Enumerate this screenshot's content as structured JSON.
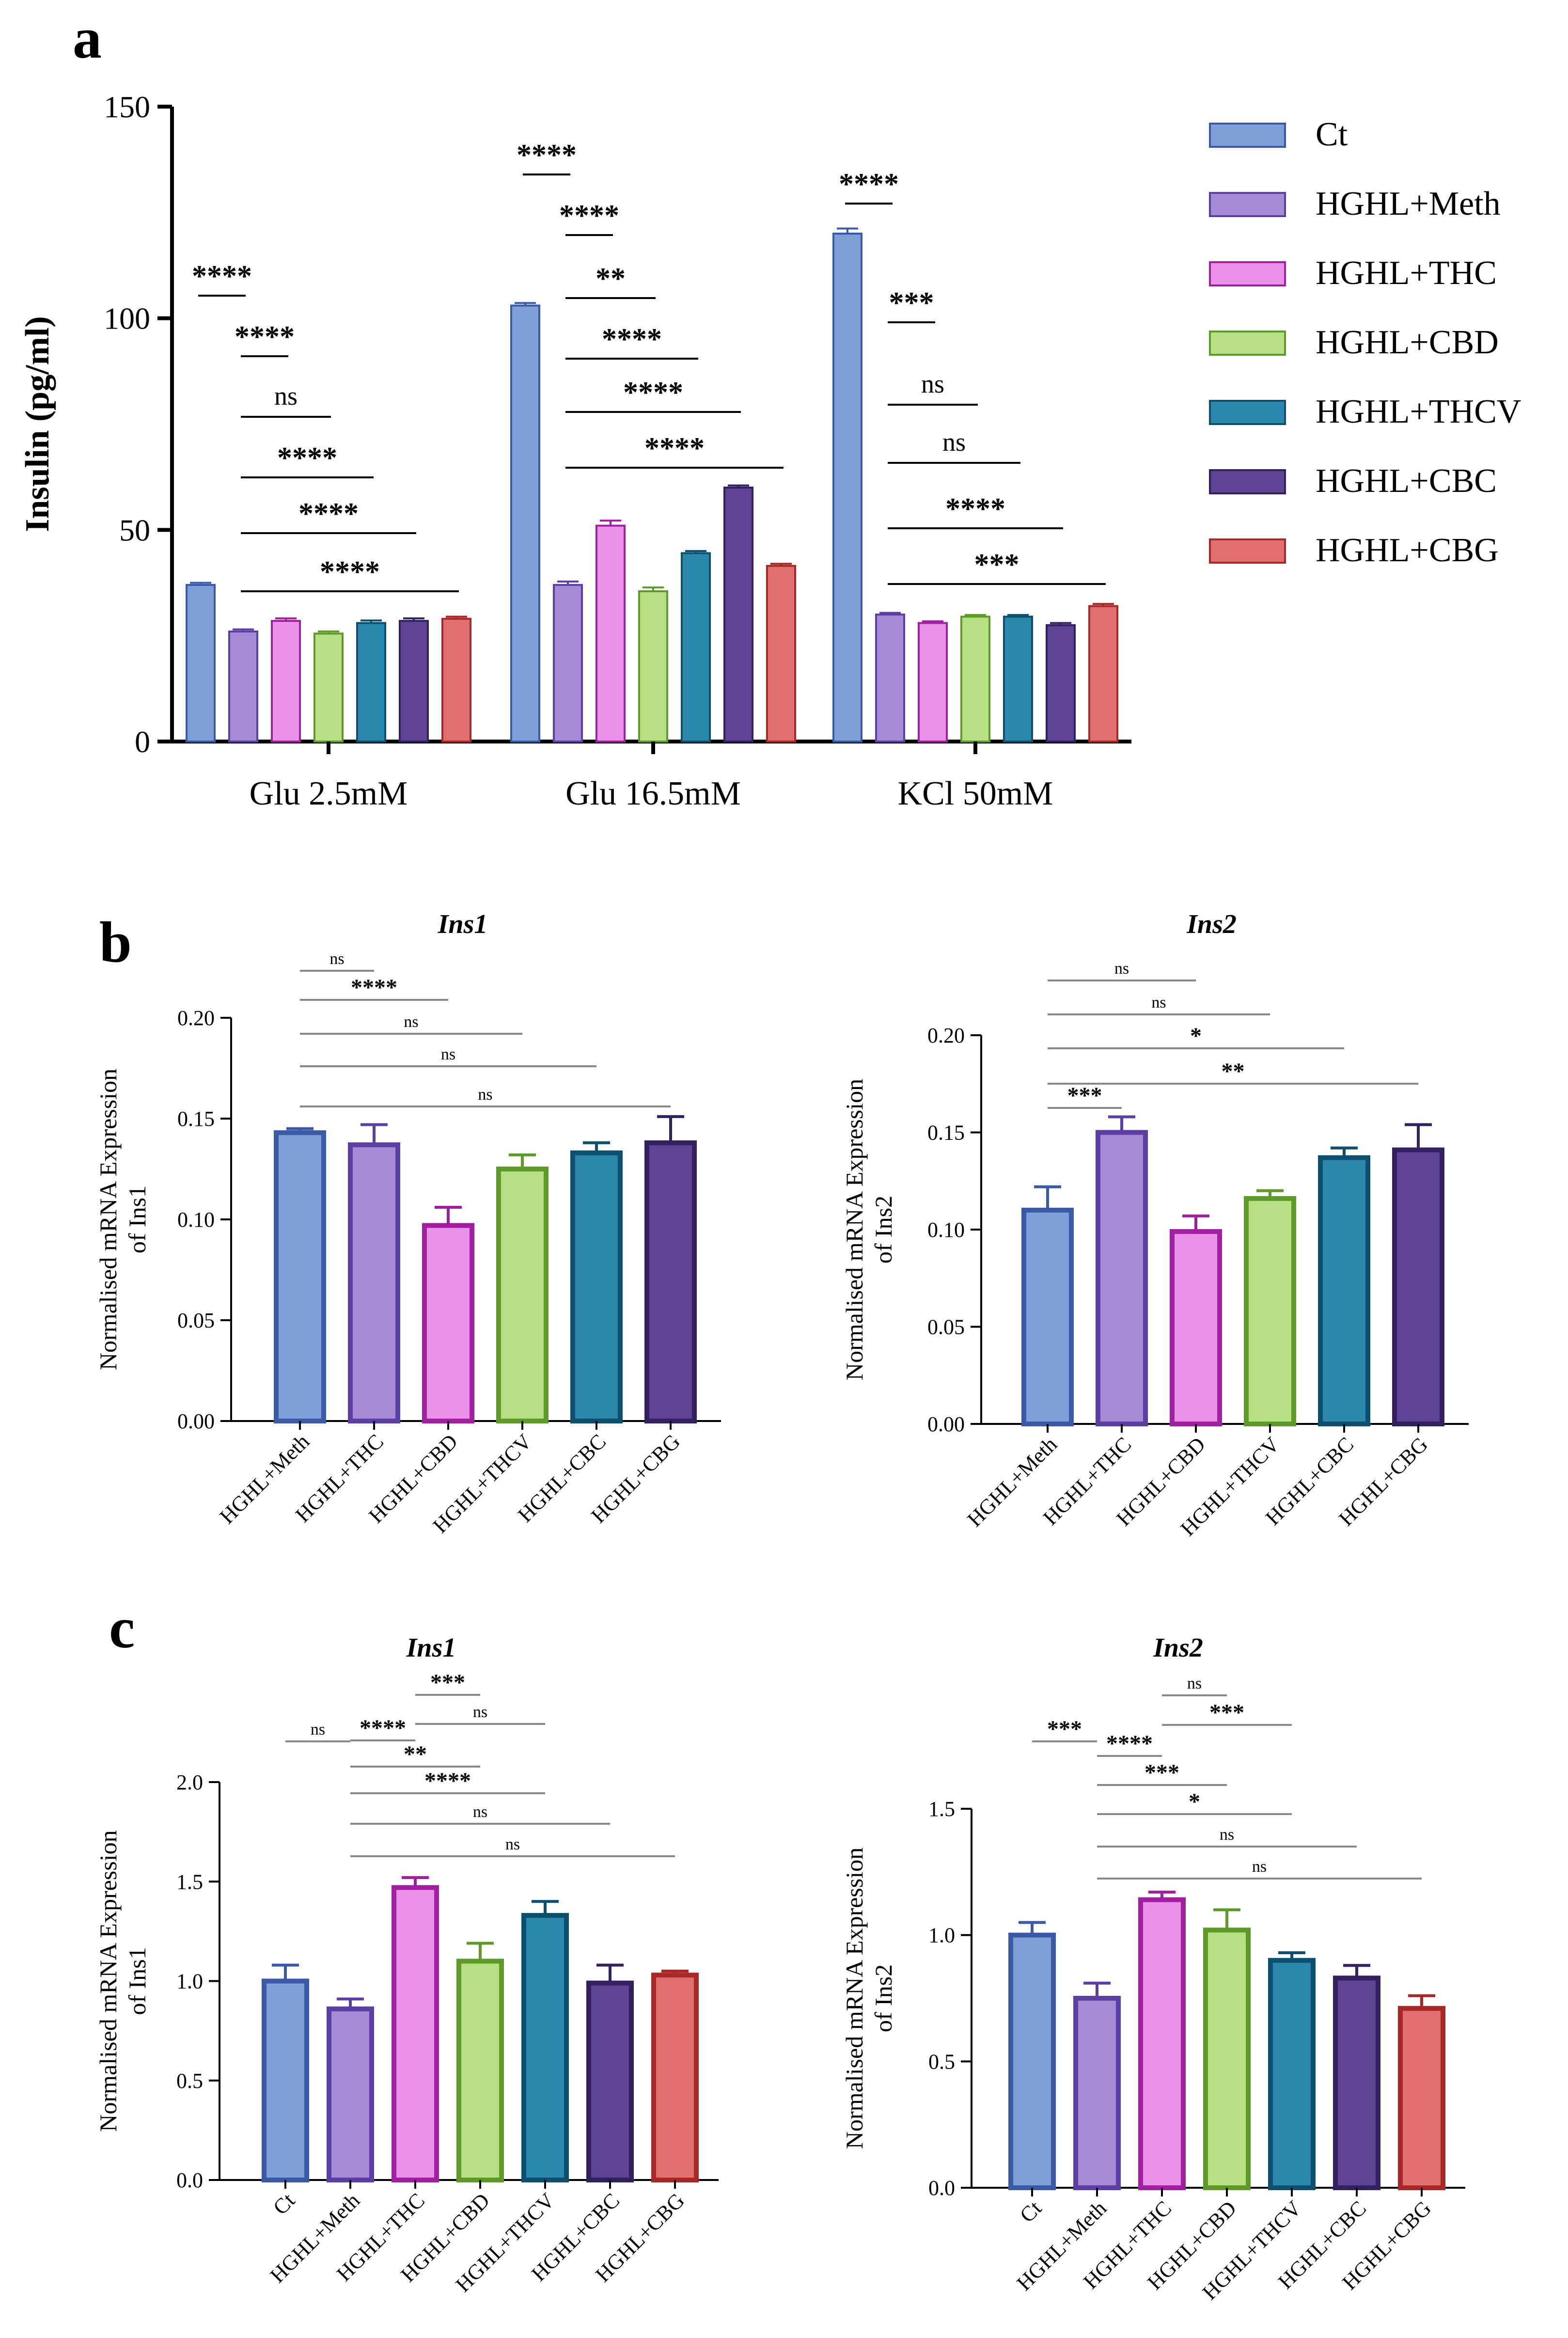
{
  "panel_labels": {
    "a": "a",
    "b": "b",
    "c": "c"
  },
  "colors": {
    "Ct": {
      "fill": "#7f9fd9",
      "stroke": "#3a5aa6"
    },
    "HGHL+Meth": {
      "fill": "#a38bd6",
      "stroke": "#5c3fa3"
    },
    "HGHL+THC": {
      "fill": "#ea92ea",
      "stroke": "#a020a0"
    },
    "HGHL+CBD": {
      "fill": "#b9df85",
      "stroke": "#5d9a2a"
    },
    "HGHL+THCV": {
      "fill": "#2b88ac",
      "stroke": "#0d4f6e"
    },
    "HGHL+CBC": {
      "fill": "#5d4494",
      "stroke": "#33205e"
    },
    "HGHL+CBG": {
      "fill": "#e07070",
      "stroke": "#a82828"
    }
  },
  "chart_data": [
    {
      "id": "a",
      "type": "bar",
      "title": "",
      "xlabel": "",
      "ylabel": "Insulin (pg/ml)",
      "ylim": [
        0,
        150
      ],
      "yticks": [
        0,
        50,
        100,
        150
      ],
      "categories": [
        "Glu 2.5mM",
        "Glu 16.5mM",
        "KCl 50mM"
      ],
      "legend": [
        "Ct",
        "HGHL+Meth",
        "HGHL+THC",
        "HGHL+CBD",
        "HGHL+THCV",
        "HGHL+CBC",
        "HGHL+CBG"
      ],
      "legend_position": "right",
      "series": [
        {
          "name": "Ct",
          "values": [
            37,
            103,
            120
          ],
          "errors": [
            0.5,
            0.6,
            1.2
          ]
        },
        {
          "name": "HGHL+Meth",
          "values": [
            26,
            37,
            30
          ],
          "errors": [
            0.5,
            0.8,
            0.4
          ]
        },
        {
          "name": "HGHL+THC",
          "values": [
            28.5,
            51,
            28
          ],
          "errors": [
            0.6,
            1.2,
            0.4
          ]
        },
        {
          "name": "HGHL+CBD",
          "values": [
            25.5,
            35.5,
            29.5
          ],
          "errors": [
            0.5,
            0.9,
            0.4
          ]
        },
        {
          "name": "HGHL+THCV",
          "values": [
            28,
            44.5,
            29.5
          ],
          "errors": [
            0.6,
            0.5,
            0.4
          ]
        },
        {
          "name": "HGHL+CBC",
          "values": [
            28.5,
            60,
            27.5
          ],
          "errors": [
            0.6,
            0.5,
            0.5
          ]
        },
        {
          "name": "HGHL+CBG",
          "values": [
            29,
            41.5,
            32
          ],
          "errors": [
            0.5,
            0.5,
            0.5
          ]
        }
      ],
      "significance": [
        {
          "group": 0,
          "from": 0,
          "to": 1,
          "label": "****"
        },
        {
          "group": 0,
          "from": 1,
          "to": 2,
          "label": "****"
        },
        {
          "group": 0,
          "from": 1,
          "to": 3,
          "label": "ns"
        },
        {
          "group": 0,
          "from": 1,
          "to": 4,
          "label": "****"
        },
        {
          "group": 0,
          "from": 1,
          "to": 5,
          "label": "****"
        },
        {
          "group": 0,
          "from": 1,
          "to": 6,
          "label": "****"
        },
        {
          "group": 1,
          "from": 0,
          "to": 1,
          "label": "****"
        },
        {
          "group": 1,
          "from": 1,
          "to": 2,
          "label": "****"
        },
        {
          "group": 1,
          "from": 1,
          "to": 3,
          "label": "**"
        },
        {
          "group": 1,
          "from": 1,
          "to": 4,
          "label": "****"
        },
        {
          "group": 1,
          "from": 1,
          "to": 5,
          "label": "****"
        },
        {
          "group": 1,
          "from": 1,
          "to": 6,
          "label": "****"
        },
        {
          "group": 2,
          "from": 0,
          "to": 1,
          "label": "****"
        },
        {
          "group": 2,
          "from": 1,
          "to": 2,
          "label": "***"
        },
        {
          "group": 2,
          "from": 1,
          "to": 3,
          "label": "ns"
        },
        {
          "group": 2,
          "from": 1,
          "to": 4,
          "label": "ns"
        },
        {
          "group": 2,
          "from": 1,
          "to": 5,
          "label": "****"
        },
        {
          "group": 2,
          "from": 1,
          "to": 6,
          "label": "***"
        }
      ]
    },
    {
      "id": "b-ins1",
      "type": "bar",
      "title": "Ins1",
      "xlabel": "",
      "ylabel": "Normalised mRNA Expression",
      "ylabel2": "of Ins1",
      "ylim": [
        0,
        0.2
      ],
      "yticks": [
        "0.00",
        "0.05",
        "0.10",
        "0.15",
        "0.20"
      ],
      "categories": [
        "HGHL+Meth",
        "HGHL+THC",
        "HGHL+CBD",
        "HGHL+THCV",
        "HGHL+CBC",
        "HGHL+CBG"
      ],
      "colors": [
        "Ct",
        "HGHL+Meth",
        "HGHL+THC",
        "HGHL+CBD",
        "HGHL+THCV",
        "HGHL+CBC"
      ],
      "values": [
        0.143,
        0.137,
        0.097,
        0.125,
        0.133,
        0.138
      ],
      "errors": [
        0.002,
        0.01,
        0.009,
        0.007,
        0.005,
        0.013
      ],
      "significance": [
        {
          "from": 0,
          "to": 1,
          "label": "ns"
        },
        {
          "from": 0,
          "to": 2,
          "label": "****"
        },
        {
          "from": 0,
          "to": 3,
          "label": "ns"
        },
        {
          "from": 0,
          "to": 4,
          "label": "ns"
        },
        {
          "from": 0,
          "to": 5,
          "label": "ns"
        }
      ]
    },
    {
      "id": "b-ins2",
      "type": "bar",
      "title": "Ins2",
      "xlabel": "",
      "ylabel": "Normalised mRNA Expression",
      "ylabel2": "of Ins2",
      "ylim": [
        0,
        0.2
      ],
      "yticks": [
        "0.00",
        "0.05",
        "0.10",
        "0.15",
        "0.20"
      ],
      "categories": [
        "HGHL+Meth",
        "HGHL+THC",
        "HGHL+CBD",
        "HGHL+THCV",
        "HGHL+CBC",
        "HGHL+CBG"
      ],
      "colors": [
        "Ct",
        "HGHL+Meth",
        "HGHL+THC",
        "HGHL+CBD",
        "HGHL+THCV",
        "HGHL+CBC"
      ],
      "values": [
        0.11,
        0.15,
        0.099,
        0.116,
        0.137,
        0.141
      ],
      "errors": [
        0.012,
        0.008,
        0.008,
        0.004,
        0.005,
        0.013
      ],
      "significance": [
        {
          "from": 0,
          "to": 1,
          "label": "***"
        },
        {
          "from": 0,
          "to": 2,
          "label": "ns"
        },
        {
          "from": 0,
          "to": 3,
          "label": "ns"
        },
        {
          "from": 0,
          "to": 4,
          "label": "*"
        },
        {
          "from": 0,
          "to": 5,
          "label": "**"
        }
      ]
    },
    {
      "id": "c-ins1",
      "type": "bar",
      "title": "Ins1",
      "xlabel": "",
      "ylabel": "Normalised mRNA Expression",
      "ylabel2": "of Ins1",
      "ylim": [
        0,
        2.0
      ],
      "yticks": [
        "0.0",
        "0.5",
        "1.0",
        "1.5",
        "2.0"
      ],
      "categories": [
        "Ct",
        "HGHL+Meth",
        "HGHL+THC",
        "HGHL+CBD",
        "HGHL+THCV",
        "HGHL+CBC",
        "HGHL+CBG"
      ],
      "colors": [
        "Ct",
        "HGHL+Meth",
        "HGHL+THC",
        "HGHL+CBD",
        "HGHL+THCV",
        "HGHL+CBC",
        "HGHL+CBG"
      ],
      "values": [
        1.0,
        0.86,
        1.47,
        1.1,
        1.33,
        0.99,
        1.03
      ],
      "errors": [
        0.08,
        0.05,
        0.05,
        0.09,
        0.07,
        0.09,
        0.02
      ],
      "significance": [
        {
          "from": 0,
          "to": 1,
          "label": "ns"
        },
        {
          "from": 2,
          "to": 3,
          "label": "***"
        },
        {
          "from": 2,
          "to": 4,
          "label": "ns"
        },
        {
          "from": 1,
          "to": 2,
          "label": "****"
        },
        {
          "from": 1,
          "to": 3,
          "label": "**"
        },
        {
          "from": 1,
          "to": 4,
          "label": "****"
        },
        {
          "from": 1,
          "to": 5,
          "label": "ns"
        },
        {
          "from": 1,
          "to": 6,
          "label": "ns"
        }
      ]
    },
    {
      "id": "c-ins2",
      "type": "bar",
      "title": "Ins2",
      "xlabel": "",
      "ylabel": "Normalised mRNA Expression",
      "ylabel2": "of Ins2",
      "ylim": [
        0,
        1.5
      ],
      "yticks": [
        "0.0",
        "0.5",
        "1.0",
        "1.5"
      ],
      "categories": [
        "Ct",
        "HGHL+Meth",
        "HGHL+THC",
        "HGHL+CBD",
        "HGHL+THCV",
        "HGHL+CBC",
        "HGHL+CBG"
      ],
      "colors": [
        "Ct",
        "HGHL+Meth",
        "HGHL+THC",
        "HGHL+CBD",
        "HGHL+THCV",
        "HGHL+CBC",
        "HGHL+CBG"
      ],
      "values": [
        1.0,
        0.75,
        1.14,
        1.02,
        0.9,
        0.83,
        0.71
      ],
      "errors": [
        0.05,
        0.06,
        0.03,
        0.08,
        0.03,
        0.05,
        0.05
      ],
      "significance": [
        {
          "from": 2,
          "to": 3,
          "label": "ns"
        },
        {
          "from": 2,
          "to": 4,
          "label": "***"
        },
        {
          "from": 0,
          "to": 1,
          "label": "***"
        },
        {
          "from": 1,
          "to": 2,
          "label": "****"
        },
        {
          "from": 1,
          "to": 3,
          "label": "***"
        },
        {
          "from": 1,
          "to": 4,
          "label": "*"
        },
        {
          "from": 1,
          "to": 5,
          "label": "ns"
        },
        {
          "from": 1,
          "to": 6,
          "label": "ns"
        }
      ]
    }
  ]
}
